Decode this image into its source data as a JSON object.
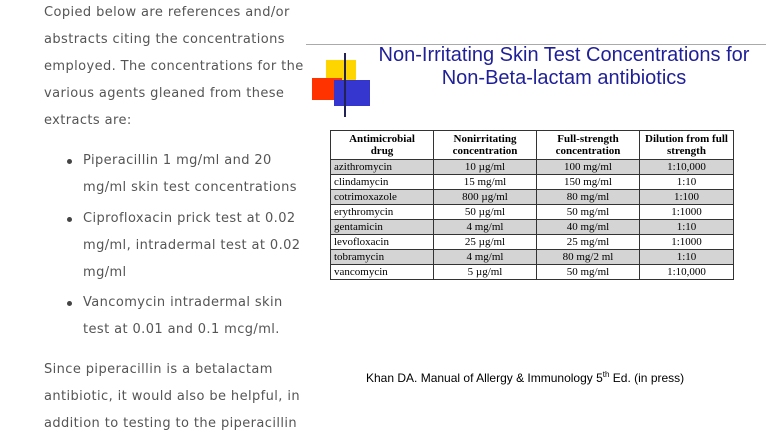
{
  "left_column": {
    "intro_lines": [
      "Copied below are references and/or",
      "abstracts citing the concentrations",
      "employed. The concentrations for the",
      "various agents gleaned from these",
      "extracts are:"
    ],
    "bullets": [
      {
        "lines": [
          "Piperacillin 1 mg/ml and 20",
          "mg/ml skin test concentrations"
        ]
      },
      {
        "lines": [
          "Ciprofloxacin prick test at 0.02",
          "mg/ml, intradermal test at 0.02",
          "mg/ml"
        ]
      },
      {
        "lines": [
          "Vancomycin intradermal skin",
          "test at 0.01 and 0.1 mcg/ml."
        ]
      }
    ],
    "closing_lines": [
      "Since piperacillin is a betalactam",
      "antibiotic, it would also be helpful, in",
      "addition to testing to the piperacillin"
    ]
  },
  "slide": {
    "title_line1": "Non-Irritating Skin Test Concentrations for",
    "title_line2": "Non-Beta-lactam antibiotics",
    "table": {
      "headers": [
        [
          "Antimicrobial",
          "drug"
        ],
        [
          "Nonirritating",
          "concentration"
        ],
        [
          "Full-strength",
          "concentration"
        ],
        [
          "Dilution from full",
          "strength"
        ]
      ],
      "rows": [
        [
          "azithromycin",
          "10 µg/ml",
          "100 mg/ml",
          "1:10,000"
        ],
        [
          "clindamycin",
          "15 mg/ml",
          "150 mg/ml",
          "1:10"
        ],
        [
          "cotrimoxazole",
          "800 µg/ml",
          "80 mg/ml",
          "1:100"
        ],
        [
          "erythromycin",
          "50 µg/ml",
          "50 mg/ml",
          "1:1000"
        ],
        [
          "gentamicin",
          "4 mg/ml",
          "40 mg/ml",
          "1:10"
        ],
        [
          "levofloxacin",
          "25 µg/ml",
          "25 mg/ml",
          "1:1000"
        ],
        [
          "tobramycin",
          "4 mg/ml",
          "80 mg/2 ml",
          "1:10"
        ],
        [
          "vancomycin",
          "5 µg/ml",
          "50 mg/ml",
          "1:10,000"
        ]
      ]
    },
    "citation": {
      "pre": "Khan DA.  Manual of Allergy & Immunology 5",
      "sup": "th",
      "post": " Ed. (in press)"
    }
  }
}
